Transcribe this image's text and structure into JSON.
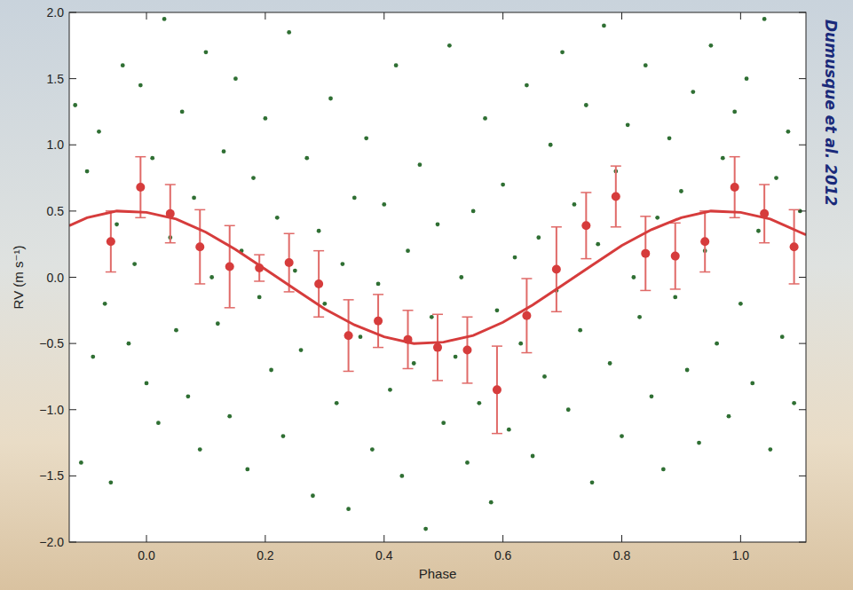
{
  "chart_data": {
    "type": "scatter",
    "xlabel": "Phase",
    "ylabel": "RV (m s⁻¹)",
    "annotation": "Dumusque et al. 2012",
    "xlim": [
      -0.13,
      1.11
    ],
    "ylim": [
      -2,
      2
    ],
    "xticks": [
      {
        "value": 0,
        "label": "0.0"
      },
      {
        "value": 0.2,
        "label": "0.2"
      },
      {
        "value": 0.4,
        "label": "0.4"
      },
      {
        "value": 0.6,
        "label": "0.6"
      },
      {
        "value": 0.8,
        "label": "0.8"
      },
      {
        "value": 1,
        "label": "1.0"
      }
    ],
    "yticks": [
      {
        "value": -2,
        "label": "−2.0"
      },
      {
        "value": -1.5,
        "label": "−1.5"
      },
      {
        "value": -1,
        "label": "−1.0"
      },
      {
        "value": -0.5,
        "label": "−0.5"
      },
      {
        "value": 0,
        "label": "0.0"
      },
      {
        "value": 0.5,
        "label": "0.5"
      },
      {
        "value": 1,
        "label": "1.0"
      },
      {
        "value": 1.5,
        "label": "1.5"
      },
      {
        "value": 2,
        "label": "2.0"
      }
    ],
    "grid": false,
    "series": [
      {
        "type": "scatter",
        "color": "#2f6f33",
        "marker": "circle",
        "x": [
          -0.12,
          -0.11,
          -0.1,
          -0.09,
          -0.08,
          -0.07,
          -0.06,
          -0.05,
          -0.04,
          -0.03,
          -0.02,
          -0.01,
          0.0,
          0.01,
          0.02,
          0.03,
          0.04,
          0.05,
          0.06,
          0.07,
          0.08,
          0.09,
          0.1,
          0.11,
          0.12,
          0.13,
          0.14,
          0.15,
          0.16,
          0.17,
          0.18,
          0.19,
          0.2,
          0.21,
          0.22,
          0.23,
          0.24,
          0.25,
          0.26,
          0.27,
          0.28,
          0.29,
          0.3,
          0.31,
          0.32,
          0.33,
          0.34,
          0.35,
          0.36,
          0.37,
          0.38,
          0.39,
          0.4,
          0.41,
          0.42,
          0.43,
          0.44,
          0.45,
          0.46,
          0.47,
          0.48,
          0.49,
          0.5,
          0.51,
          0.52,
          0.53,
          0.54,
          0.55,
          0.56,
          0.57,
          0.58,
          0.59,
          0.6,
          0.61,
          0.62,
          0.63,
          0.64,
          0.65,
          0.66,
          0.67,
          0.68,
          0.69,
          0.7,
          0.71,
          0.72,
          0.73,
          0.74,
          0.75,
          0.76,
          0.77,
          0.78,
          0.79,
          0.8,
          0.81,
          0.82,
          0.83,
          0.84,
          0.85,
          0.86,
          0.87,
          0.88,
          0.89,
          0.9,
          0.91,
          0.92,
          0.93,
          0.94,
          0.95,
          0.96,
          0.97,
          0.98,
          0.99,
          1.0,
          1.01,
          1.02,
          1.03,
          1.04,
          1.05,
          1.06,
          1.07,
          1.08,
          1.09,
          1.1
        ],
        "values": [
          1.3,
          -1.4,
          0.8,
          -0.6,
          1.1,
          -0.2,
          -1.55,
          0.4,
          1.6,
          -0.5,
          0.1,
          1.45,
          -0.8,
          0.9,
          -1.1,
          1.95,
          0.3,
          -0.4,
          1.25,
          -0.9,
          0.6,
          -1.3,
          1.7,
          0.0,
          -0.35,
          0.95,
          -1.05,
          1.5,
          0.2,
          -1.45,
          0.75,
          -0.15,
          1.2,
          -0.7,
          0.45,
          -1.2,
          1.85,
          0.05,
          -0.55,
          0.9,
          -1.65,
          0.35,
          -0.2,
          1.35,
          -0.95,
          0.1,
          -1.75,
          0.6,
          -0.45,
          1.05,
          -1.3,
          -0.05,
          0.55,
          -0.85,
          1.6,
          -1.5,
          0.2,
          -0.65,
          0.85,
          -1.9,
          -0.3,
          0.4,
          -1.1,
          1.75,
          -0.6,
          0.0,
          -1.4,
          0.5,
          -0.95,
          1.2,
          -1.7,
          -0.25,
          0.7,
          -1.15,
          0.15,
          -0.5,
          1.45,
          -1.35,
          0.3,
          -0.75,
          1.0,
          -0.1,
          1.7,
          -1.0,
          0.55,
          -0.4,
          1.3,
          -1.55,
          0.25,
          1.9,
          -0.65,
          0.8,
          -1.2,
          1.15,
          0.0,
          -0.3,
          1.6,
          -0.9,
          0.45,
          -1.45,
          1.05,
          -0.15,
          0.65,
          -0.7,
          1.4,
          -1.25,
          0.2,
          1.75,
          -0.5,
          0.9,
          -1.05,
          1.25,
          -0.2,
          1.5,
          -0.8,
          0.35,
          1.95,
          -1.3,
          0.75,
          -0.45,
          1.1,
          -0.95,
          0.5
        ]
      },
      {
        "type": "scatter",
        "color": "#d63c3c",
        "marker": "circle",
        "x": [
          -0.06,
          -0.01,
          0.04,
          0.09,
          0.14,
          0.19,
          0.24,
          0.29,
          0.34,
          0.39,
          0.44,
          0.49,
          0.54,
          0.59,
          0.64,
          0.69,
          0.74,
          0.79,
          0.84,
          0.89,
          0.94,
          0.99,
          1.04,
          1.09
        ],
        "values": [
          0.27,
          0.68,
          0.48,
          0.23,
          0.08,
          0.07,
          0.11,
          -0.05,
          -0.44,
          -0.33,
          -0.47,
          -0.53,
          -0.55,
          -0.85,
          -0.29,
          0.06,
          0.39,
          0.61,
          0.18,
          0.16,
          0.27,
          0.68,
          0.48,
          0.23
        ],
        "errors": [
          0.23,
          0.23,
          0.22,
          0.28,
          0.31,
          0.1,
          0.22,
          0.25,
          0.27,
          0.2,
          0.22,
          0.25,
          0.25,
          0.33,
          0.28,
          0.32,
          0.25,
          0.23,
          0.28,
          0.25,
          0.23,
          0.23,
          0.22,
          0.28
        ]
      },
      {
        "type": "line",
        "color": "#d63c3c",
        "line_style": "solid",
        "x": [
          -0.13,
          -0.1,
          -0.05,
          0.0,
          0.05,
          0.1,
          0.15,
          0.2,
          0.25,
          0.3,
          0.35,
          0.4,
          0.45,
          0.5,
          0.55,
          0.6,
          0.65,
          0.7,
          0.75,
          0.8,
          0.85,
          0.9,
          0.95,
          1.0,
          1.05,
          1.1,
          1.11
        ],
        "values": [
          0.39,
          0.45,
          0.5,
          0.49,
          0.44,
          0.34,
          0.21,
          0.06,
          -0.09,
          -0.24,
          -0.36,
          -0.45,
          -0.5,
          -0.49,
          -0.44,
          -0.34,
          -0.21,
          -0.06,
          0.09,
          0.24,
          0.36,
          0.45,
          0.5,
          0.49,
          0.44,
          0.34,
          0.32
        ]
      }
    ]
  }
}
